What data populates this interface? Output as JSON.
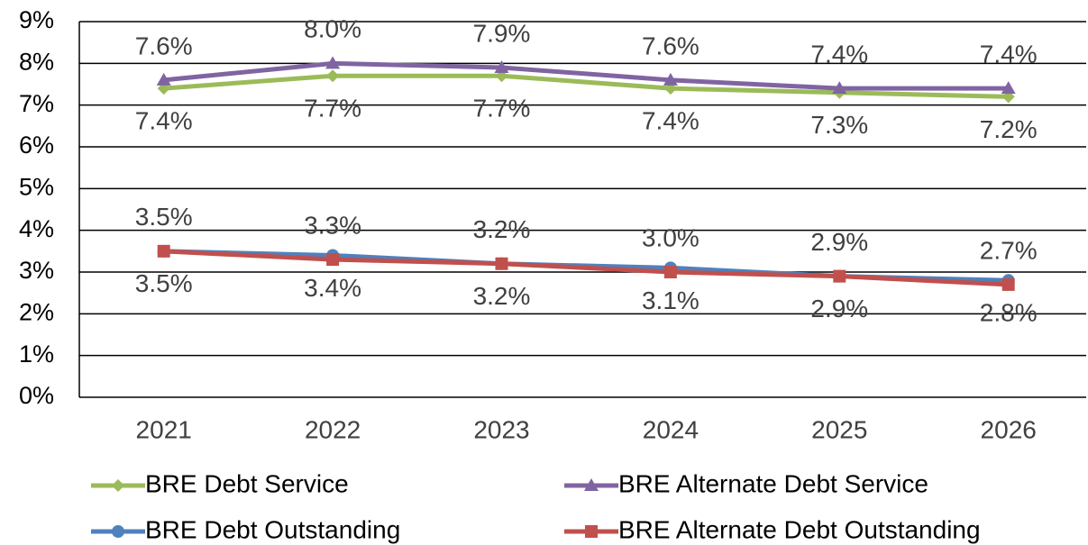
{
  "chart_data": {
    "type": "line",
    "categories": [
      "2021",
      "2022",
      "2023",
      "2024",
      "2025",
      "2026"
    ],
    "series": [
      {
        "name": "BRE Debt Service",
        "color": "#9bbb59",
        "marker": "diamond",
        "values": [
          7.4,
          7.7,
          7.7,
          7.4,
          7.3,
          7.2
        ],
        "value_labels": [
          "7.4%",
          "7.7%",
          "7.7%",
          "7.4%",
          "7.3%",
          "7.2%"
        ]
      },
      {
        "name": "BRE Alternate Debt Service",
        "color": "#8064a2",
        "marker": "triangle",
        "values": [
          7.6,
          8.0,
          7.9,
          7.6,
          7.4,
          7.4
        ],
        "value_labels": [
          "7.6%",
          "8.0%",
          "7.9%",
          "7.6%",
          "7.4%",
          "7.4%"
        ]
      },
      {
        "name": "BRE Debt Outstanding",
        "color": "#4f81bd",
        "marker": "circle",
        "values": [
          3.5,
          3.4,
          3.2,
          3.1,
          2.9,
          2.8
        ],
        "value_labels": [
          "3.5%",
          "3.4%",
          "3.2%",
          "3.1%",
          "2.9%",
          "2.8%"
        ]
      },
      {
        "name": "BRE Alternate Debt Outstanding",
        "color": "#c0504d",
        "marker": "square",
        "values": [
          3.5,
          3.3,
          3.2,
          3.0,
          2.9,
          2.7
        ],
        "value_labels": [
          "3.5%",
          "3.3%",
          "3.2%",
          "3.0%",
          "2.9%",
          "2.7%"
        ]
      }
    ],
    "ylim": [
      0,
      9
    ],
    "yticks": [
      {
        "value": 0,
        "label": "0%"
      },
      {
        "value": 1,
        "label": "1%"
      },
      {
        "value": 2,
        "label": "2%"
      },
      {
        "value": 3,
        "label": "3%"
      },
      {
        "value": 4,
        "label": "4%"
      },
      {
        "value": 5,
        "label": "5%"
      },
      {
        "value": 6,
        "label": "6%"
      },
      {
        "value": 7,
        "label": "7%"
      },
      {
        "value": 8,
        "label": "8%"
      },
      {
        "value": 9,
        "label": "9%"
      }
    ],
    "grid": true,
    "legend": "bottom"
  }
}
